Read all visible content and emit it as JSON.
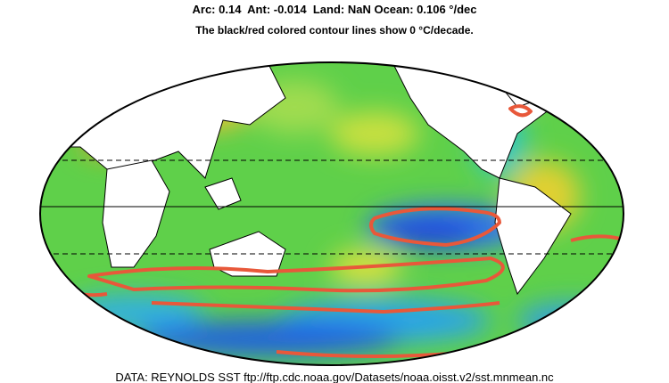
{
  "header": {
    "stats": "Arc: 0.14  Ant: -0.014  Land: NaN Ocean: 0.106 °/dec",
    "note": "The black/red colored contour lines show 0 °C/decade."
  },
  "footer": {
    "source": "DATA: REYNOLDS SST ftp://ftp.cdc.noaa.gov/Datasets/noaa.oisst.v2/sst.mnmean.nc"
  }
}
